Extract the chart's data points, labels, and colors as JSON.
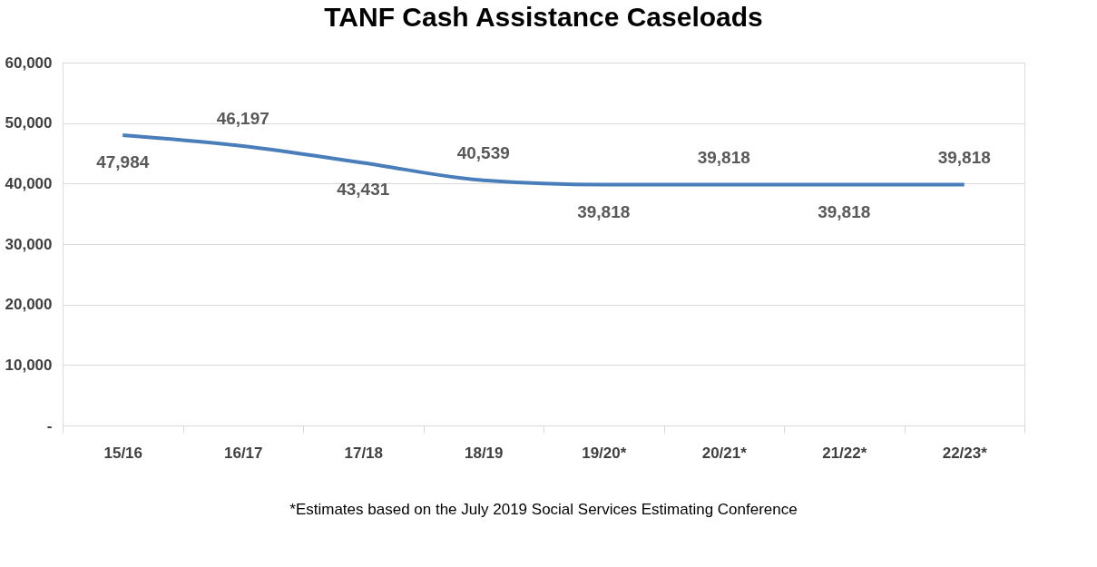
{
  "chart_data": {
    "type": "line",
    "title": "TANF Cash Assistance Caseloads",
    "categories": [
      "15/16",
      "16/17",
      "17/18",
      "18/19",
      "19/20*",
      "20/21*",
      "21/22*",
      "22/23*"
    ],
    "series": [
      {
        "color": "#4a7ebb",
        "values": [
          47984,
          46197,
          43431,
          40539,
          39818,
          39818,
          39818,
          39818
        ],
        "value_labels": [
          "47,984",
          "46,197",
          "43,431",
          "40,539",
          "39,818",
          "39,818",
          "39,818",
          "39,818"
        ]
      }
    ],
    "ylim": [
      0,
      60000
    ],
    "yticks": [
      {
        "value": 0,
        "label": "-"
      },
      {
        "value": 10000,
        "label": "10,000"
      },
      {
        "value": 20000,
        "label": "20,000"
      },
      {
        "value": 30000,
        "label": "30,000"
      },
      {
        "value": 40000,
        "label": "40,000"
      },
      {
        "value": 50000,
        "label": "50,000"
      },
      {
        "value": 60000,
        "label": "60,000"
      }
    ],
    "grid": "y",
    "marker": "none",
    "line_style": "solid",
    "annotations": [
      "*Estimates based on the July 2019 Social Services Estimating Conference"
    ]
  }
}
